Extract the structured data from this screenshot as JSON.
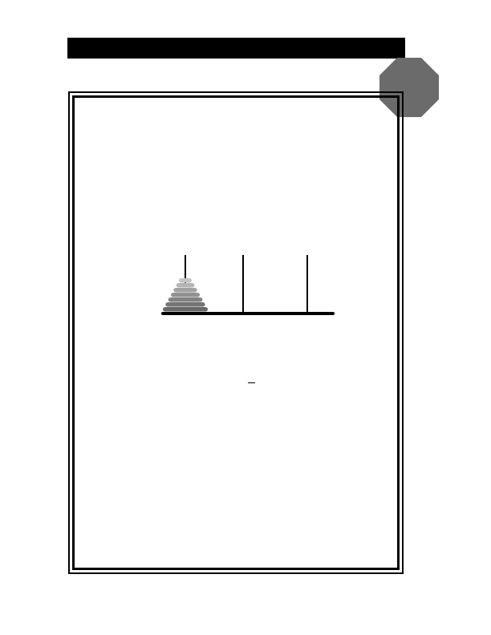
{
  "colors": {
    "ink": "#000000",
    "paper": "#ffffff",
    "badge": "#6b6b6b",
    "disks": [
      "#c4c4c4",
      "#b4b4b4",
      "#a2a2a2",
      "#929292",
      "#838383",
      "#757575",
      "#686868"
    ]
  },
  "puzzle": {
    "peg_count": 3,
    "disk_count": 7,
    "disks_on_peg": [
      7,
      0,
      0
    ]
  },
  "icons": {
    "badge": "octagon-icon"
  }
}
